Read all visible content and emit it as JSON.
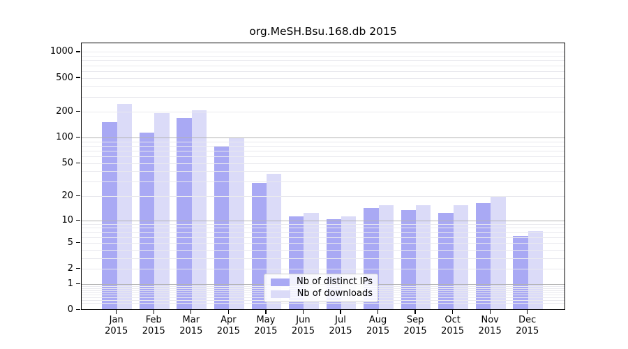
{
  "title": "org.MeSH.Bsu.168.db 2015",
  "colors": {
    "distinct_ips": "#a9a9f4",
    "downloads": "#dbdbf8",
    "grid_major": "#b2b2b2",
    "grid_minor": "#e9e9ee",
    "frame": "#000000"
  },
  "legend": {
    "items": [
      {
        "label": "Nb of distinct IPs",
        "color_key": "distinct_ips"
      },
      {
        "label": "Nb of downloads",
        "color_key": "downloads"
      }
    ]
  },
  "chart_data": {
    "type": "bar",
    "title": "org.MeSH.Bsu.168.db 2015",
    "categories": [
      "Jan",
      "Feb",
      "Mar",
      "Apr",
      "May",
      "Jun",
      "Jul",
      "Aug",
      "Sep",
      "Oct",
      "Nov",
      "Dec"
    ],
    "category_second_line": "2015",
    "series": [
      {
        "name": "Nb of distinct IPs",
        "values": [
          148,
          112,
          165,
          78,
          28,
          11,
          10,
          14,
          13,
          12,
          16,
          6
        ]
      },
      {
        "name": "Nb of downloads",
        "values": [
          240,
          190,
          205,
          97,
          36,
          12,
          11,
          15,
          15,
          15,
          19,
          7
        ]
      }
    ],
    "xlabel": "",
    "ylabel": "",
    "yscale": "log1p",
    "ylim": [
      0,
      1275
    ],
    "yticks": [
      1000,
      500,
      200,
      100,
      50,
      20,
      10,
      5,
      2,
      1,
      0
    ],
    "grid": true,
    "grid_major_at": [
      1,
      10,
      100
    ],
    "legend_position": "lower center"
  }
}
